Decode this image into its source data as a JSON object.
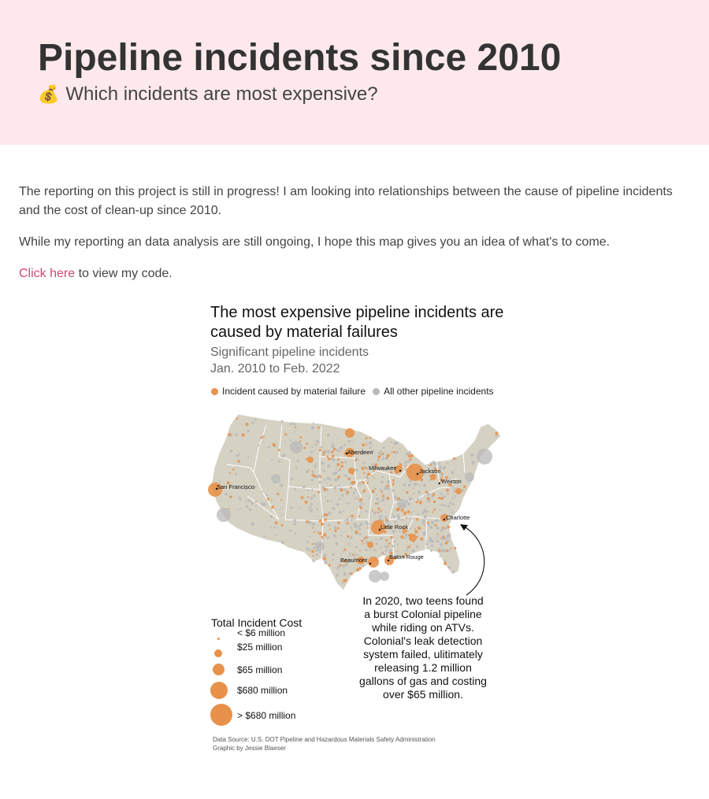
{
  "header": {
    "title": "Pipeline incidents since 2010",
    "subtitle_icon": "money-bag-icon",
    "subtitle": "Which incidents are most expensive?"
  },
  "intro": {
    "p1": "The reporting on this project is still in progress! I am looking into relationships between the cause of pipeline incidents and the cost of clean-up since 2010.",
    "p2": "While my reporting an data analysis are still ongoing, I hope this map gives you an idea of what's to come.",
    "link_text": "Click here",
    "link_tail": " to view my code."
  },
  "map": {
    "title": "The most expensive pipeline incidents are caused by material failures",
    "subtitle_line1": "Significant pipeline incidents",
    "subtitle_line2": "Jan. 2010 to Feb. 2022",
    "legend": [
      {
        "label": "Incident caused by material failure",
        "color": "#e8914a"
      },
      {
        "label": "All other pipeline incidents",
        "color": "#b8b8b8"
      }
    ],
    "cities": [
      "Aberdeen",
      "Milwaukee",
      "Jackson",
      "Weirton",
      "San Francisco",
      "Little Rock",
      "Charlotte",
      "Beaumont",
      "Baton Rouge"
    ],
    "annotation": "In 2020, two teens found a burst Colonial pipeline while riding on ATVs. Colonial's leak detection system failed, ulitimately releasing 1.2 million gallons of gas and costing over $65 million.",
    "size_legend_title": "Total Incident Cost",
    "size_legend": [
      "< $6 million",
      "$25 million",
      "$65 million",
      "$680 million",
      "> $680 million"
    ],
    "source_line1": "Data Source: U.S. DOT Pipeline and Hazardous Materials Safety Administration",
    "source_line2": "Graphic by Jessie Blaeser",
    "colors": {
      "material": "#e8914a",
      "other": "#b8b8b8",
      "land": "#d5d1c3"
    }
  }
}
